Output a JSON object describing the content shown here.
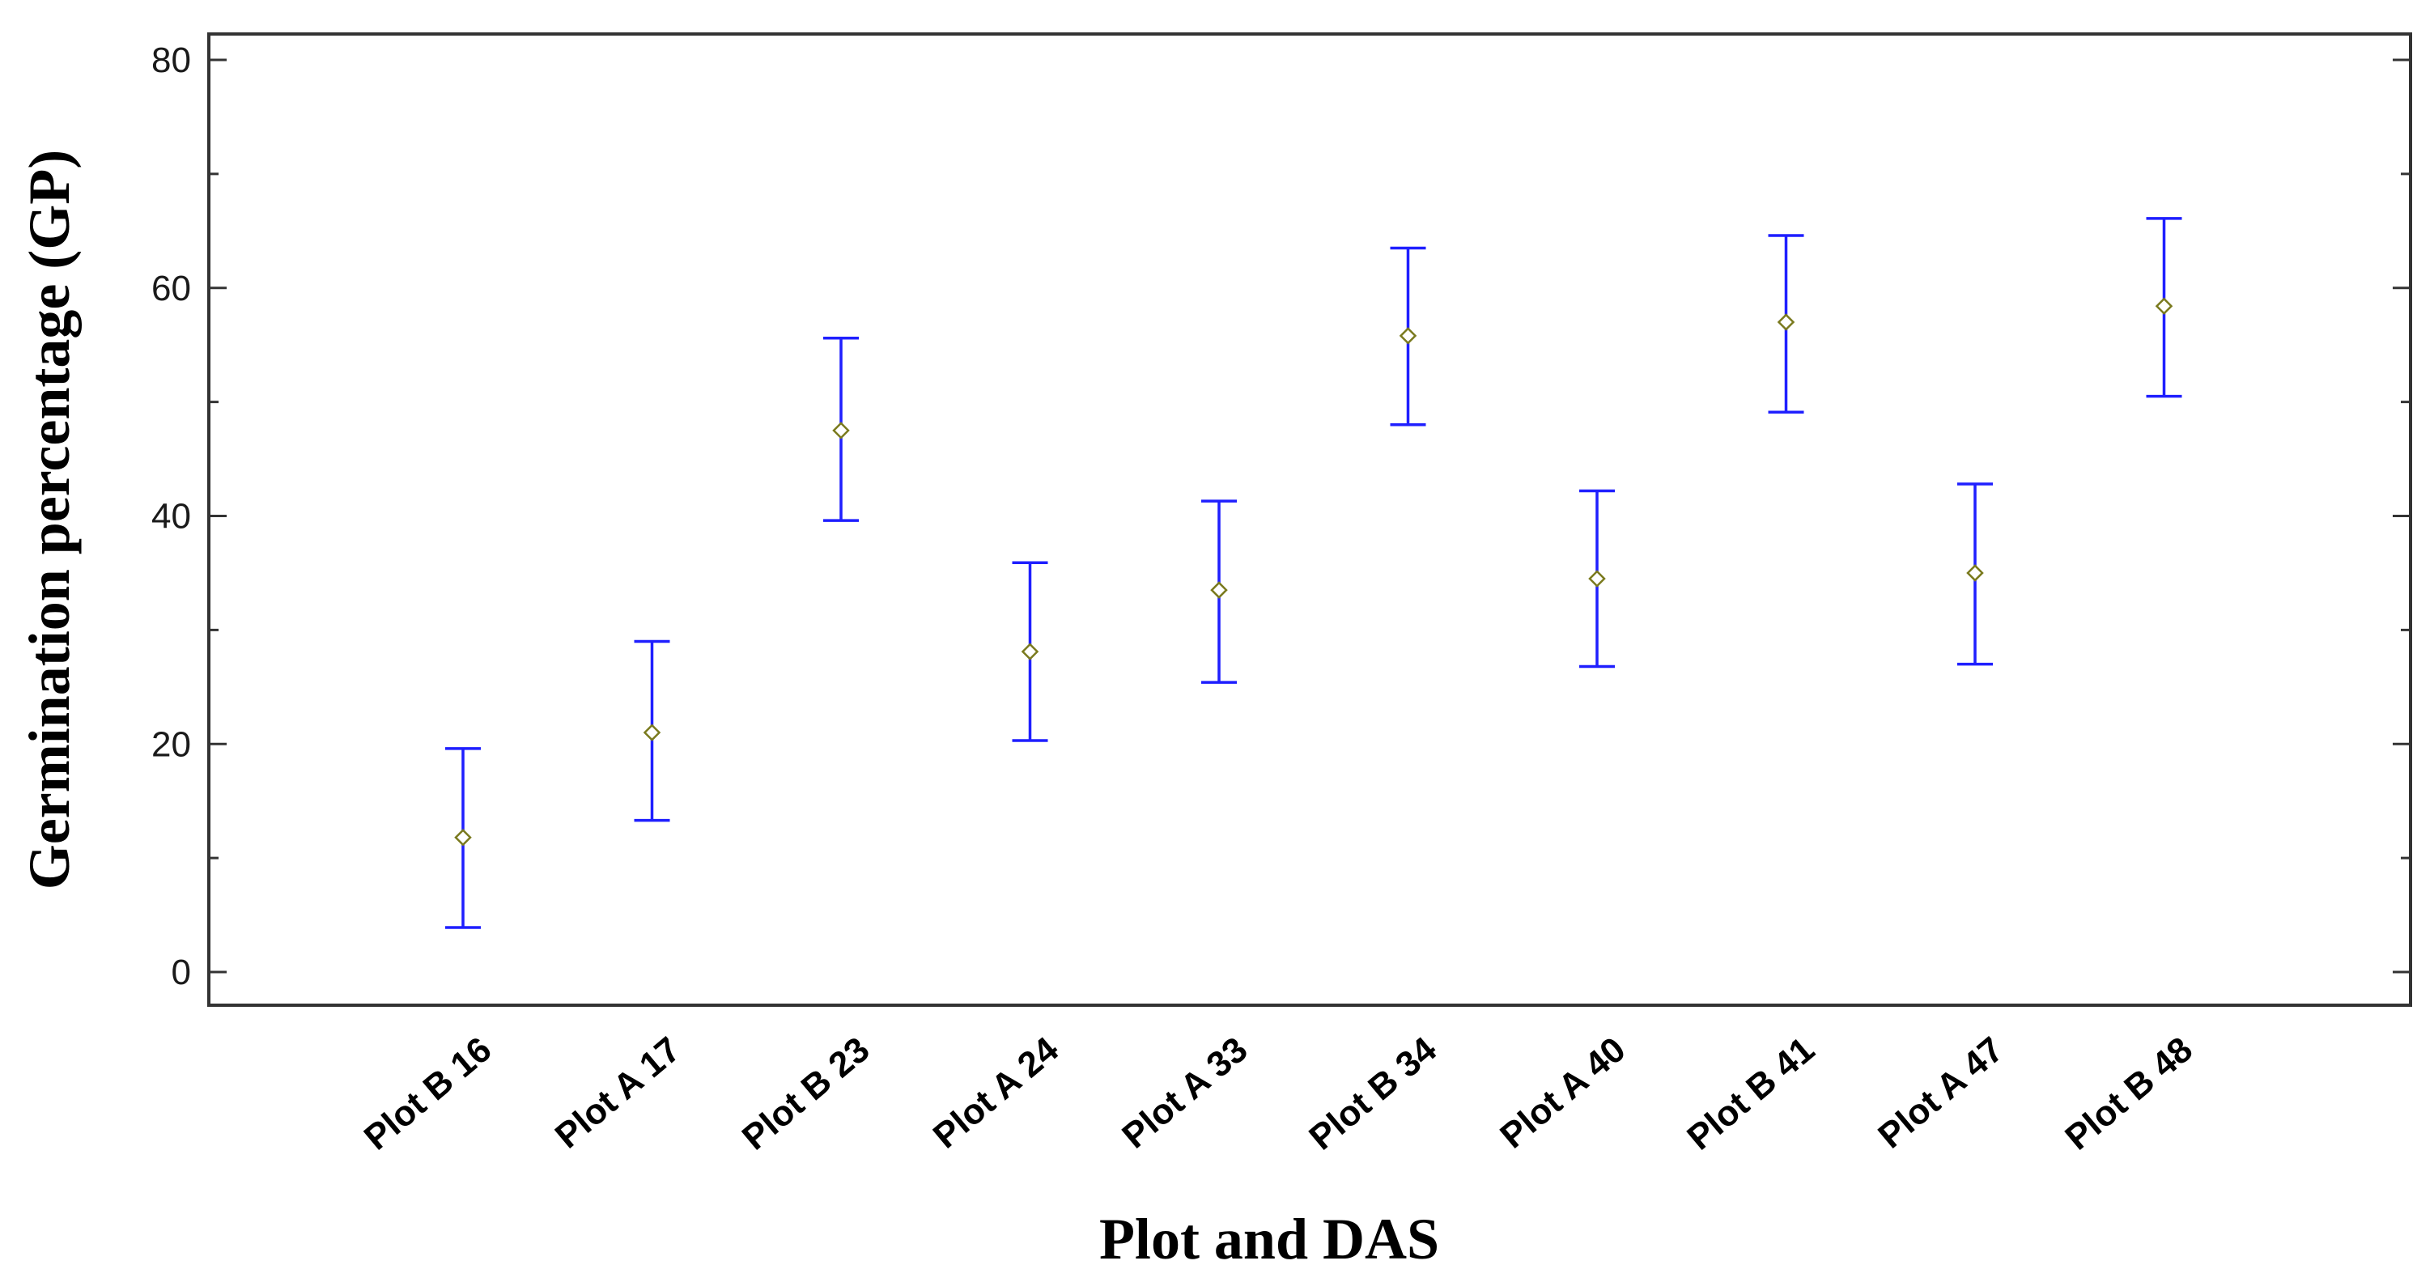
{
  "chart_data": {
    "type": "scatter",
    "subtype": "interval-plot",
    "xlabel": "Plot and DAS",
    "ylabel": "Germination  percentage (GP)",
    "ylim": [
      0,
      80
    ],
    "yticks": [
      "0",
      "20",
      "40",
      "60",
      "80"
    ],
    "y_minor_step": 10,
    "grid": false,
    "categories": [
      "Plot B 16",
      "Plot A 17",
      "Plot B 23",
      "Plot A 24",
      "Plot A 33",
      "Plot B 34",
      "Plot A 40",
      "Plot B 41",
      "Plot A 47",
      "Plot B 48"
    ],
    "series": [
      {
        "means": [
          11.8,
          21.0,
          47.5,
          28.1,
          33.5,
          55.8,
          34.5,
          57.0,
          35.0,
          58.4
        ],
        "lower": [
          3.9,
          13.3,
          39.6,
          20.3,
          25.4,
          48.0,
          26.8,
          49.1,
          27.0,
          50.5
        ],
        "upper": [
          19.6,
          29.0,
          55.6,
          35.9,
          41.3,
          63.5,
          42.2,
          64.6,
          42.8,
          66.1
        ]
      }
    ],
    "colors": {
      "error_bar": "#1f1fff",
      "marker": "#7a7a1e",
      "axis": "#333333"
    }
  }
}
